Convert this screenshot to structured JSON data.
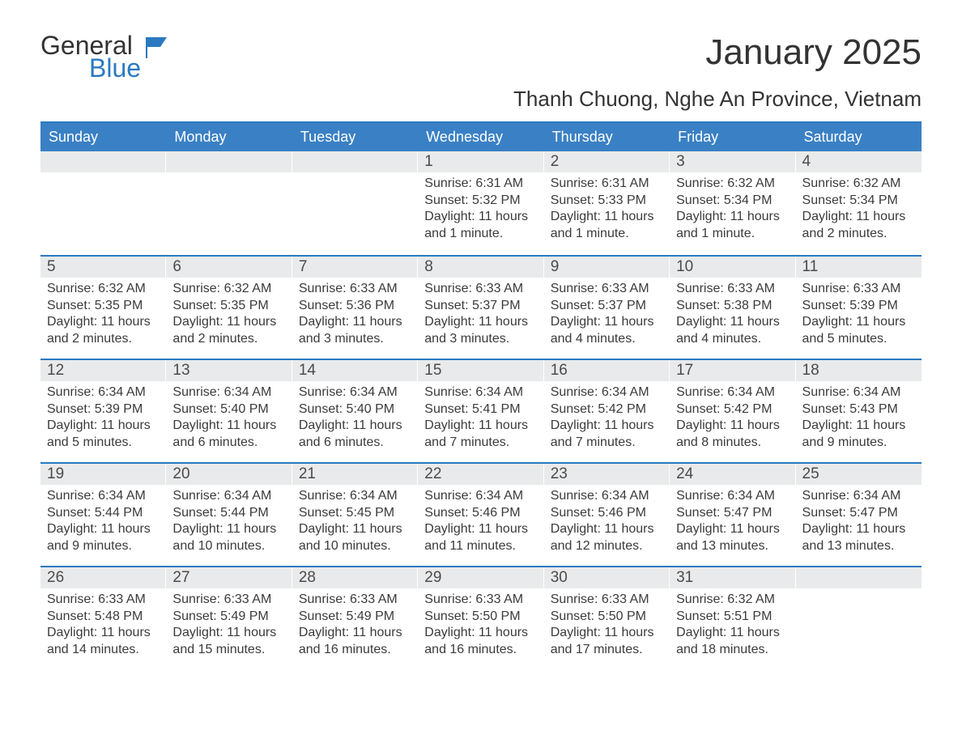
{
  "logo": {
    "line1": "General",
    "line2": "Blue"
  },
  "title": "January 2025",
  "location": "Thanh Chuong, Nghe An Province, Vietnam",
  "colors": {
    "header_bg": "#3a80c4",
    "header_text": "#ffffff",
    "accent_border": "#2a7ac0",
    "daynum_bg": "#e9eaeb",
    "text": "#3b3b3b",
    "logo_blue": "#2a7ac0",
    "background": "#ffffff"
  },
  "typography": {
    "title_fontsize": 44,
    "location_fontsize": 26,
    "header_fontsize": 18,
    "daynum_fontsize": 19,
    "body_fontsize": 16,
    "logo_fontsize": 32
  },
  "calendar": {
    "columns": [
      "Sunday",
      "Monday",
      "Tuesday",
      "Wednesday",
      "Thursday",
      "Friday",
      "Saturday"
    ],
    "weeks": [
      [
        {
          "day": "",
          "sunrise": "",
          "sunset": "",
          "daylight": ""
        },
        {
          "day": "",
          "sunrise": "",
          "sunset": "",
          "daylight": ""
        },
        {
          "day": "",
          "sunrise": "",
          "sunset": "",
          "daylight": ""
        },
        {
          "day": "1",
          "sunrise": "Sunrise: 6:31 AM",
          "sunset": "Sunset: 5:32 PM",
          "daylight": "Daylight: 11 hours and 1 minute."
        },
        {
          "day": "2",
          "sunrise": "Sunrise: 6:31 AM",
          "sunset": "Sunset: 5:33 PM",
          "daylight": "Daylight: 11 hours and 1 minute."
        },
        {
          "day": "3",
          "sunrise": "Sunrise: 6:32 AM",
          "sunset": "Sunset: 5:34 PM",
          "daylight": "Daylight: 11 hours and 1 minute."
        },
        {
          "day": "4",
          "sunrise": "Sunrise: 6:32 AM",
          "sunset": "Sunset: 5:34 PM",
          "daylight": "Daylight: 11 hours and 2 minutes."
        }
      ],
      [
        {
          "day": "5",
          "sunrise": "Sunrise: 6:32 AM",
          "sunset": "Sunset: 5:35 PM",
          "daylight": "Daylight: 11 hours and 2 minutes."
        },
        {
          "day": "6",
          "sunrise": "Sunrise: 6:32 AM",
          "sunset": "Sunset: 5:35 PM",
          "daylight": "Daylight: 11 hours and 2 minutes."
        },
        {
          "day": "7",
          "sunrise": "Sunrise: 6:33 AM",
          "sunset": "Sunset: 5:36 PM",
          "daylight": "Daylight: 11 hours and 3 minutes."
        },
        {
          "day": "8",
          "sunrise": "Sunrise: 6:33 AM",
          "sunset": "Sunset: 5:37 PM",
          "daylight": "Daylight: 11 hours and 3 minutes."
        },
        {
          "day": "9",
          "sunrise": "Sunrise: 6:33 AM",
          "sunset": "Sunset: 5:37 PM",
          "daylight": "Daylight: 11 hours and 4 minutes."
        },
        {
          "day": "10",
          "sunrise": "Sunrise: 6:33 AM",
          "sunset": "Sunset: 5:38 PM",
          "daylight": "Daylight: 11 hours and 4 minutes."
        },
        {
          "day": "11",
          "sunrise": "Sunrise: 6:33 AM",
          "sunset": "Sunset: 5:39 PM",
          "daylight": "Daylight: 11 hours and 5 minutes."
        }
      ],
      [
        {
          "day": "12",
          "sunrise": "Sunrise: 6:34 AM",
          "sunset": "Sunset: 5:39 PM",
          "daylight": "Daylight: 11 hours and 5 minutes."
        },
        {
          "day": "13",
          "sunrise": "Sunrise: 6:34 AM",
          "sunset": "Sunset: 5:40 PM",
          "daylight": "Daylight: 11 hours and 6 minutes."
        },
        {
          "day": "14",
          "sunrise": "Sunrise: 6:34 AM",
          "sunset": "Sunset: 5:40 PM",
          "daylight": "Daylight: 11 hours and 6 minutes."
        },
        {
          "day": "15",
          "sunrise": "Sunrise: 6:34 AM",
          "sunset": "Sunset: 5:41 PM",
          "daylight": "Daylight: 11 hours and 7 minutes."
        },
        {
          "day": "16",
          "sunrise": "Sunrise: 6:34 AM",
          "sunset": "Sunset: 5:42 PM",
          "daylight": "Daylight: 11 hours and 7 minutes."
        },
        {
          "day": "17",
          "sunrise": "Sunrise: 6:34 AM",
          "sunset": "Sunset: 5:42 PM",
          "daylight": "Daylight: 11 hours and 8 minutes."
        },
        {
          "day": "18",
          "sunrise": "Sunrise: 6:34 AM",
          "sunset": "Sunset: 5:43 PM",
          "daylight": "Daylight: 11 hours and 9 minutes."
        }
      ],
      [
        {
          "day": "19",
          "sunrise": "Sunrise: 6:34 AM",
          "sunset": "Sunset: 5:44 PM",
          "daylight": "Daylight: 11 hours and 9 minutes."
        },
        {
          "day": "20",
          "sunrise": "Sunrise: 6:34 AM",
          "sunset": "Sunset: 5:44 PM",
          "daylight": "Daylight: 11 hours and 10 minutes."
        },
        {
          "day": "21",
          "sunrise": "Sunrise: 6:34 AM",
          "sunset": "Sunset: 5:45 PM",
          "daylight": "Daylight: 11 hours and 10 minutes."
        },
        {
          "day": "22",
          "sunrise": "Sunrise: 6:34 AM",
          "sunset": "Sunset: 5:46 PM",
          "daylight": "Daylight: 11 hours and 11 minutes."
        },
        {
          "day": "23",
          "sunrise": "Sunrise: 6:34 AM",
          "sunset": "Sunset: 5:46 PM",
          "daylight": "Daylight: 11 hours and 12 minutes."
        },
        {
          "day": "24",
          "sunrise": "Sunrise: 6:34 AM",
          "sunset": "Sunset: 5:47 PM",
          "daylight": "Daylight: 11 hours and 13 minutes."
        },
        {
          "day": "25",
          "sunrise": "Sunrise: 6:34 AM",
          "sunset": "Sunset: 5:47 PM",
          "daylight": "Daylight: 11 hours and 13 minutes."
        }
      ],
      [
        {
          "day": "26",
          "sunrise": "Sunrise: 6:33 AM",
          "sunset": "Sunset: 5:48 PM",
          "daylight": "Daylight: 11 hours and 14 minutes."
        },
        {
          "day": "27",
          "sunrise": "Sunrise: 6:33 AM",
          "sunset": "Sunset: 5:49 PM",
          "daylight": "Daylight: 11 hours and 15 minutes."
        },
        {
          "day": "28",
          "sunrise": "Sunrise: 6:33 AM",
          "sunset": "Sunset: 5:49 PM",
          "daylight": "Daylight: 11 hours and 16 minutes."
        },
        {
          "day": "29",
          "sunrise": "Sunrise: 6:33 AM",
          "sunset": "Sunset: 5:50 PM",
          "daylight": "Daylight: 11 hours and 16 minutes."
        },
        {
          "day": "30",
          "sunrise": "Sunrise: 6:33 AM",
          "sunset": "Sunset: 5:50 PM",
          "daylight": "Daylight: 11 hours and 17 minutes."
        },
        {
          "day": "31",
          "sunrise": "Sunrise: 6:32 AM",
          "sunset": "Sunset: 5:51 PM",
          "daylight": "Daylight: 11 hours and 18 minutes."
        },
        {
          "day": "",
          "sunrise": "",
          "sunset": "",
          "daylight": ""
        }
      ]
    ]
  }
}
